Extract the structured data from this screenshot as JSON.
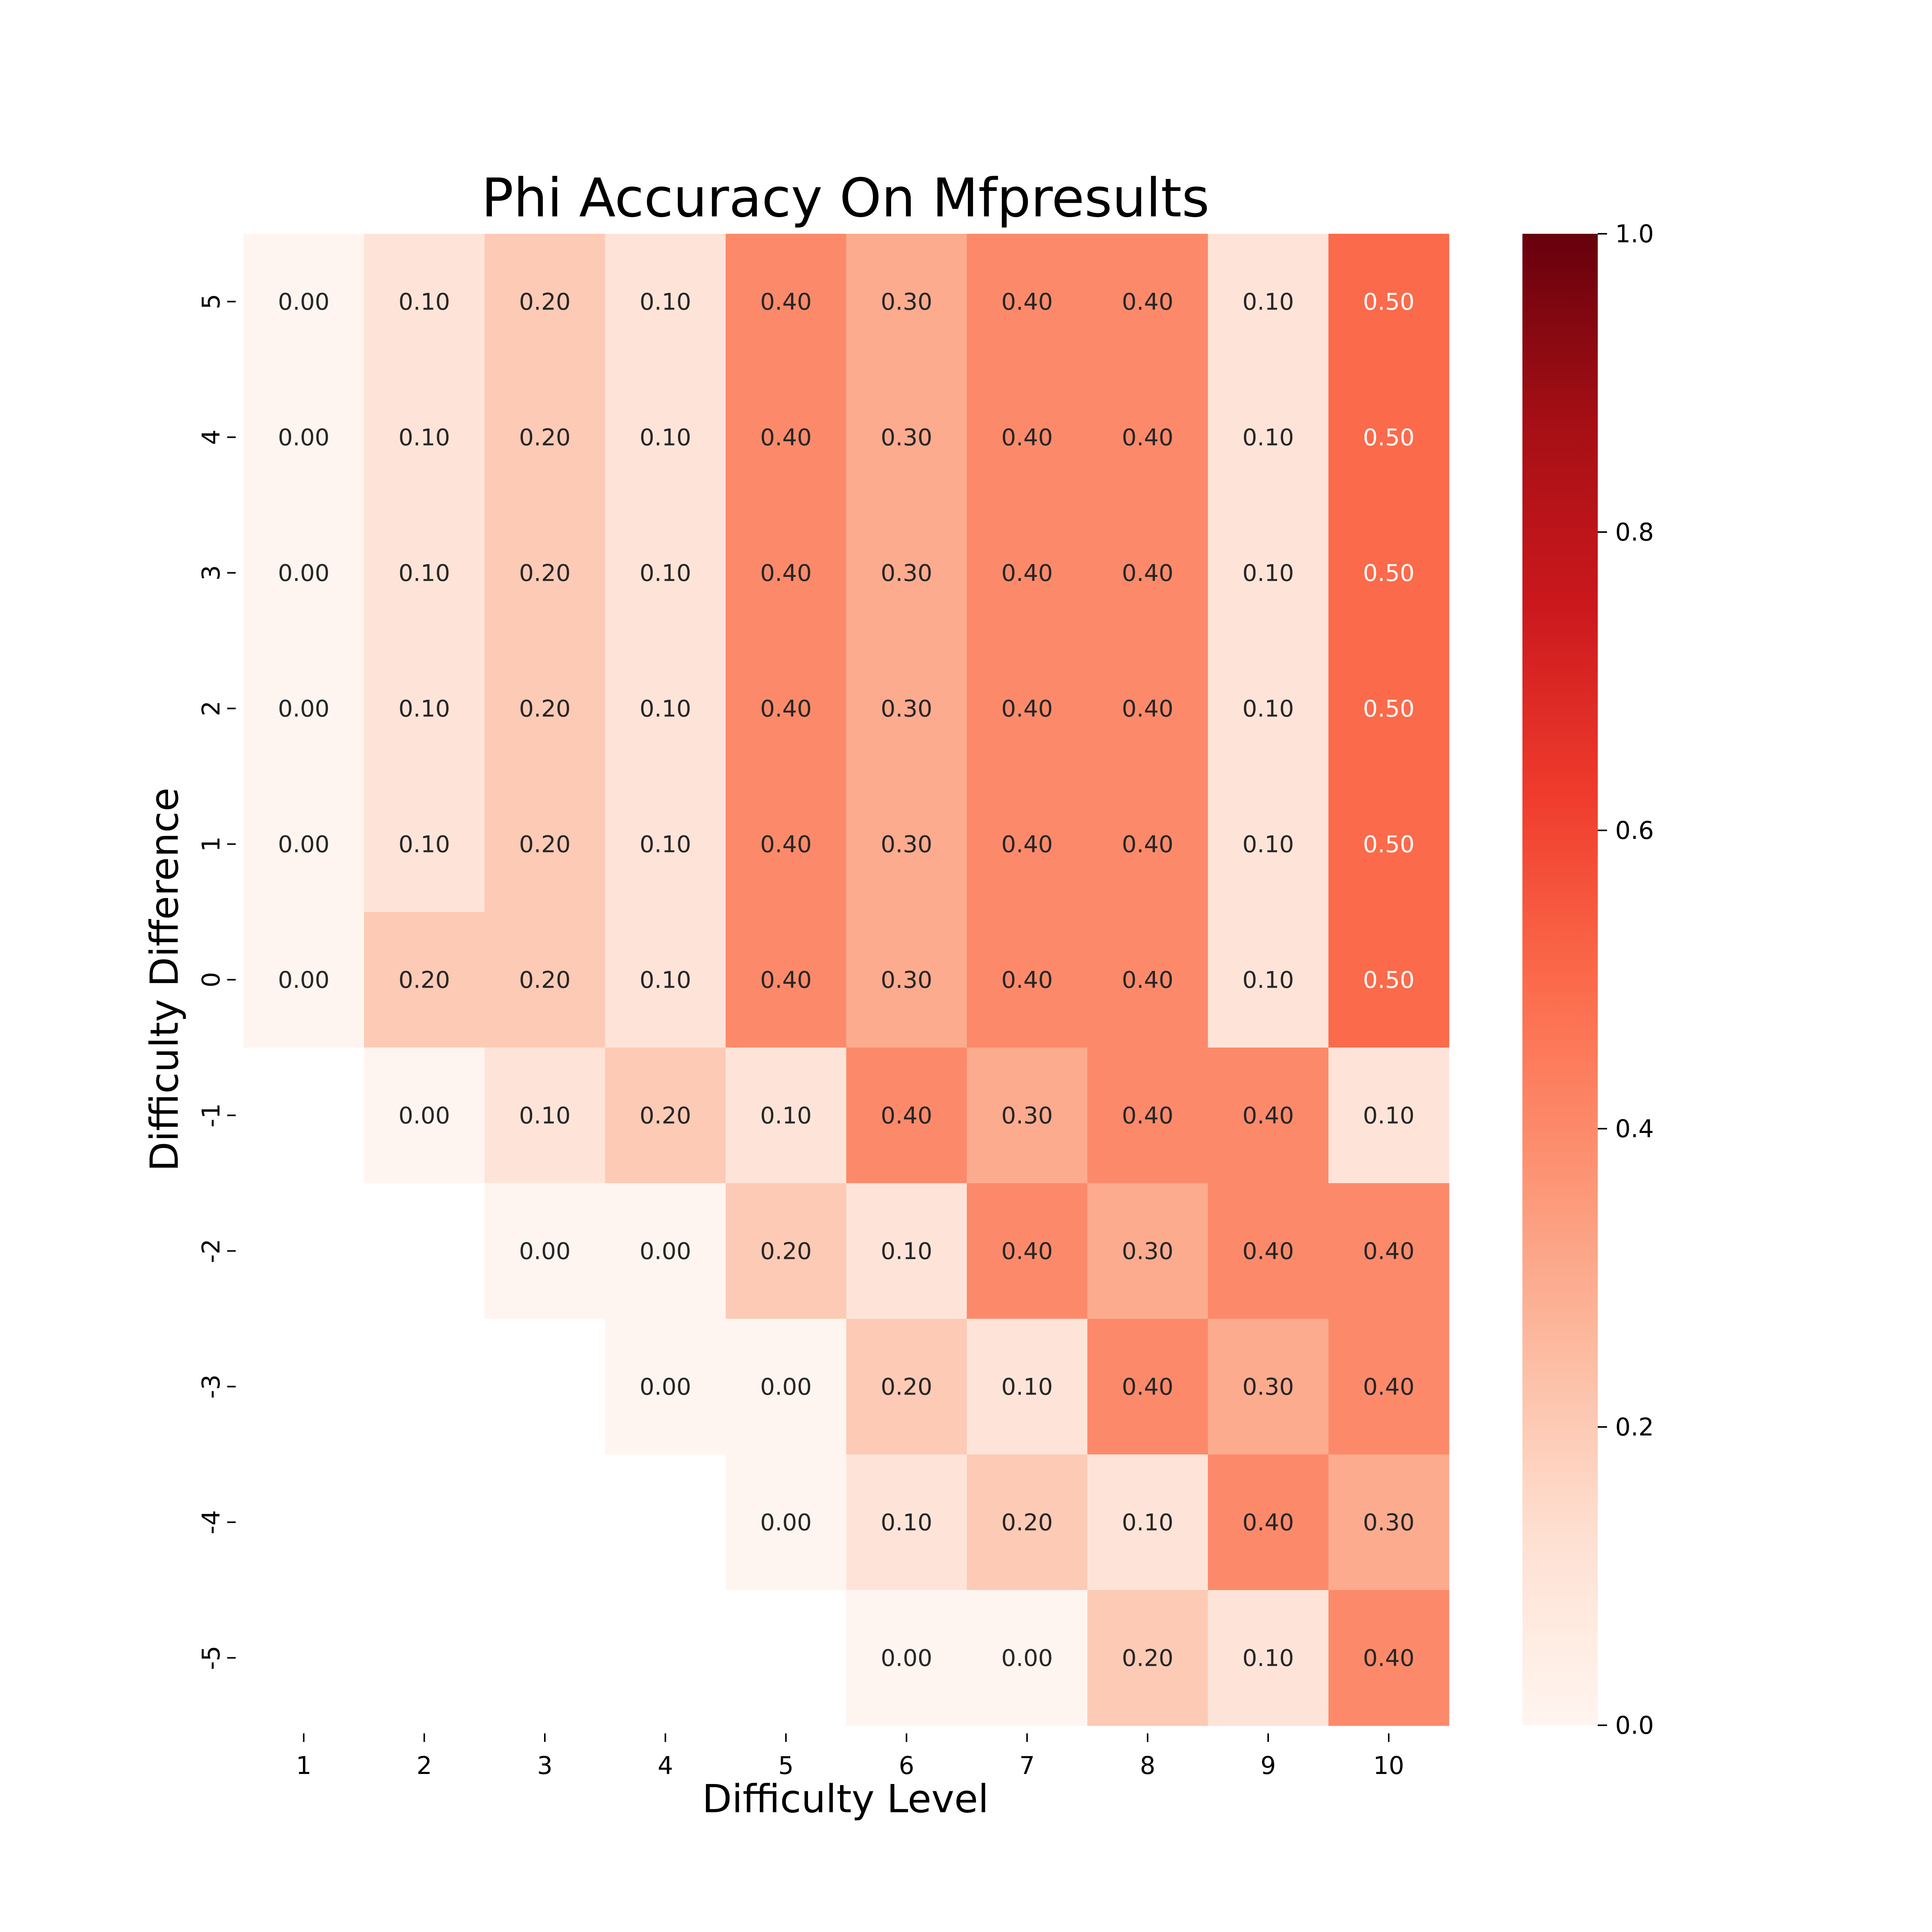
{
  "chart_data": {
    "type": "heatmap",
    "title": "Phi Accuracy On Mfpresults",
    "xlabel": "Difficulty Level",
    "ylabel": "Difficulty Difference",
    "x_categories": [
      "1",
      "2",
      "3",
      "4",
      "5",
      "6",
      "7",
      "8",
      "9",
      "10"
    ],
    "y_categories": [
      "5",
      "4",
      "3",
      "2",
      "1",
      "0",
      "-1",
      "-2",
      "-3",
      "-4",
      "-5"
    ],
    "values": [
      [
        0.0,
        0.1,
        0.2,
        0.1,
        0.4,
        0.3,
        0.4,
        0.4,
        0.1,
        0.5
      ],
      [
        0.0,
        0.1,
        0.2,
        0.1,
        0.4,
        0.3,
        0.4,
        0.4,
        0.1,
        0.5
      ],
      [
        0.0,
        0.1,
        0.2,
        0.1,
        0.4,
        0.3,
        0.4,
        0.4,
        0.1,
        0.5
      ],
      [
        0.0,
        0.1,
        0.2,
        0.1,
        0.4,
        0.3,
        0.4,
        0.4,
        0.1,
        0.5
      ],
      [
        0.0,
        0.1,
        0.2,
        0.1,
        0.4,
        0.3,
        0.4,
        0.4,
        0.1,
        0.5
      ],
      [
        0.0,
        0.2,
        0.2,
        0.1,
        0.4,
        0.3,
        0.4,
        0.4,
        0.1,
        0.5
      ],
      [
        null,
        0.0,
        0.1,
        0.2,
        0.1,
        0.4,
        0.3,
        0.4,
        0.4,
        0.1
      ],
      [
        null,
        null,
        0.0,
        0.0,
        0.2,
        0.1,
        0.4,
        0.3,
        0.4,
        0.4
      ],
      [
        null,
        null,
        null,
        0.0,
        0.0,
        0.2,
        0.1,
        0.4,
        0.3,
        0.4
      ],
      [
        null,
        null,
        null,
        null,
        0.0,
        0.1,
        0.2,
        0.1,
        0.4,
        0.3
      ],
      [
        null,
        null,
        null,
        null,
        null,
        0.0,
        0.0,
        0.2,
        0.1,
        0.4
      ]
    ],
    "value_format": "0.00",
    "colormap": "Reds",
    "vmin": 0.0,
    "vmax": 1.0,
    "colorbar_ticks": [
      "0.0",
      "0.2",
      "0.4",
      "0.6",
      "0.8",
      "1.0"
    ],
    "colorbar_tick_values": [
      0.0,
      0.2,
      0.4,
      0.6,
      0.8,
      1.0
    ],
    "colors": {
      "text_dark": "#262626",
      "text_light": "#ffffff",
      "missing": "#ffffff",
      "axis": "#000000"
    }
  }
}
